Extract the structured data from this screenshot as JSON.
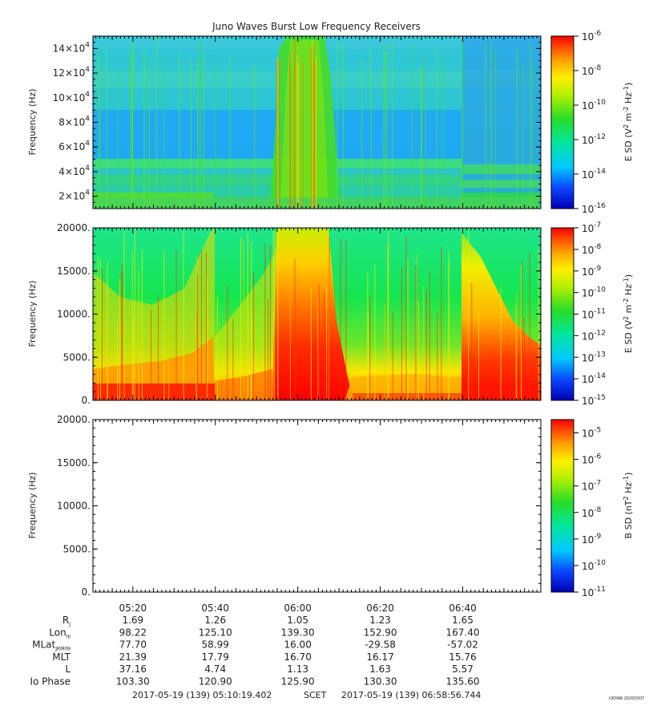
{
  "title": "Juno Waves Burst Low Frequency Receivers",
  "chart_data": [
    {
      "type": "heatmap",
      "ylabel": "Frequency (Hz)",
      "ylim": [
        10000,
        150000
      ],
      "y_ticks": [
        {
          "v": 20000,
          "m": "2",
          "e": "4"
        },
        {
          "v": 40000,
          "m": "4",
          "e": "4"
        },
        {
          "v": 60000,
          "m": "6",
          "e": "4"
        },
        {
          "v": 80000,
          "m": "8",
          "e": "4"
        },
        {
          "v": 100000,
          "m": "10",
          "e": "4"
        },
        {
          "v": 120000,
          "m": "12",
          "e": "4"
        },
        {
          "v": 140000,
          "m": "14",
          "e": "4"
        }
      ],
      "colorbar": {
        "label_pre": "E SD (V",
        "sup1": "2",
        "label_mid": " m",
        "sup2": "-2",
        "label_mid2": " Hz",
        "sup3": "-1",
        "label_post": ")",
        "exp_min": -16,
        "exp_max": -6,
        "ticks": [
          "-6",
          "-8",
          "-10",
          "-12",
          "-14",
          "-16"
        ]
      }
    },
    {
      "type": "heatmap",
      "ylabel": "Frequency (Hz)",
      "ylim": [
        0,
        20000
      ],
      "y_ticks": [
        "0.",
        "5000.",
        "10000.",
        "15000.",
        "20000."
      ],
      "colorbar": {
        "label_pre": "E SD (V",
        "sup1": "2",
        "label_mid": " m",
        "sup2": "-2",
        "label_mid2": " Hz",
        "sup3": "-1",
        "label_post": ")",
        "exp_min": -15,
        "exp_max": -7,
        "ticks": [
          "-7",
          "-8",
          "-9",
          "-10",
          "-11",
          "-12",
          "-13",
          "-14",
          "-15"
        ]
      }
    },
    {
      "type": "heatmap",
      "ylabel": "Frequency (Hz)",
      "ylim": [
        0,
        20000
      ],
      "y_ticks": [
        "0.",
        "5000.",
        "10000.",
        "15000.",
        "20000."
      ],
      "empty": true,
      "colorbar": {
        "label_pre": "B SD (nT",
        "sup1": "2",
        "label_mid": " Hz",
        "sup2": "-1",
        "label_post": ")",
        "exp_min": -11,
        "exp_max": -4.5,
        "ticks": [
          "-5",
          "-6",
          "-7",
          "-8",
          "-9",
          "-10",
          "-11"
        ]
      }
    }
  ],
  "time_axis": {
    "start_min": 310.32,
    "end_min": 418.95,
    "ticks": [
      {
        "t": 320,
        "label": "05:20"
      },
      {
        "t": 340,
        "label": "05:40"
      },
      {
        "t": 360,
        "label": "06:00"
      },
      {
        "t": 380,
        "label": "06:20"
      },
      {
        "t": 400,
        "label": "06:40"
      }
    ]
  },
  "ephemeris": [
    {
      "label": "R",
      "sub": "J",
      "values": [
        "1.69",
        "1.26",
        "1.05",
        "1.23",
        "1.65"
      ]
    },
    {
      "label": "Lon",
      "sub": "III",
      "values": [
        "98.22",
        "125.10",
        "139.30",
        "152.90",
        "167.40"
      ]
    },
    {
      "label": "MLat",
      "sub": "JRM09",
      "values": [
        "77.70",
        "58.99",
        "16.00",
        "-29.58",
        "-57.02"
      ]
    },
    {
      "label": "MLT",
      "sub": "",
      "values": [
        "21.39",
        "17.79",
        "16.70",
        "16.17",
        "15.76"
      ]
    },
    {
      "label": "L",
      "sub": "",
      "values": [
        "37.16",
        "4.74",
        "1.13",
        "1.63",
        "5.57"
      ]
    },
    {
      "label": "Io Phase",
      "sub": "",
      "values": [
        "103.30",
        "120.90",
        "125.90",
        "130.30",
        "135.60"
      ]
    }
  ],
  "footer": {
    "start": "2017-05-19 (139) 05:10:19.402",
    "scet": "SCET",
    "end": "2017-05-19 (139) 06:58:56.744",
    "stamp": "UIOWA 20200307"
  }
}
